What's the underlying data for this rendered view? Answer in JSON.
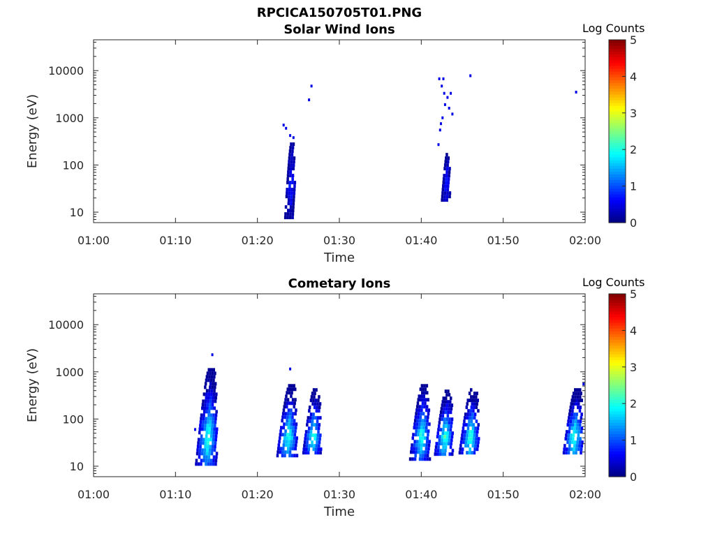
{
  "figure_title": "RPCICA150705T01.PNG",
  "chart_data": [
    {
      "type": "heatmap",
      "title": "Solar Wind Ions",
      "xlabel": "Time",
      "ylabel": "Energy (eV)",
      "xticks": [
        "01:00",
        "01:10",
        "01:20",
        "01:30",
        "01:40",
        "01:50",
        "02:00"
      ],
      "xlim_minutes": [
        0,
        60
      ],
      "yscale": "log",
      "ylim": [
        6,
        45000
      ],
      "yticks": [
        10,
        100,
        1000,
        10000
      ],
      "ytick_labels": [
        "10",
        "100",
        "1000",
        "10000"
      ],
      "colorbar": {
        "label": "Log Counts",
        "range": [
          0,
          5
        ],
        "ticks": [
          "0",
          "1",
          "2",
          "3",
          "4",
          "5"
        ],
        "colormap": "jet"
      },
      "blobs": [
        {
          "t_minute": 24.0,
          "t_width": 1.2,
          "e_min": 8,
          "e_max": 300,
          "peak_log_counts": 0.9
        },
        {
          "t_minute": 43.0,
          "t_width": 1.0,
          "e_min": 18,
          "e_max": 180,
          "peak_log_counts": 0.9
        }
      ],
      "scatter_points": [
        {
          "t_minute": 23.2,
          "energy": 700,
          "log_counts": 0.5
        },
        {
          "t_minute": 23.5,
          "energy": 600,
          "log_counts": 0.5
        },
        {
          "t_minute": 24.0,
          "energy": 420,
          "log_counts": 0.5
        },
        {
          "t_minute": 24.4,
          "energy": 380,
          "log_counts": 0.5
        },
        {
          "t_minute": 26.3,
          "energy": 2400,
          "log_counts": 0.5
        },
        {
          "t_minute": 26.6,
          "energy": 4700,
          "log_counts": 0.5
        },
        {
          "t_minute": 42.2,
          "energy": 6700,
          "log_counts": 0.5
        },
        {
          "t_minute": 42.7,
          "energy": 6700,
          "log_counts": 0.5
        },
        {
          "t_minute": 42.5,
          "energy": 4700,
          "log_counts": 0.5
        },
        {
          "t_minute": 42.8,
          "energy": 3300,
          "log_counts": 0.5
        },
        {
          "t_minute": 43.2,
          "energy": 2700,
          "log_counts": 0.5
        },
        {
          "t_minute": 43.6,
          "energy": 3300,
          "log_counts": 0.5
        },
        {
          "t_minute": 42.9,
          "energy": 1900,
          "log_counts": 0.5
        },
        {
          "t_minute": 43.4,
          "energy": 1600,
          "log_counts": 0.5
        },
        {
          "t_minute": 43.8,
          "energy": 1200,
          "log_counts": 0.5
        },
        {
          "t_minute": 42.6,
          "energy": 1000,
          "log_counts": 0.5
        },
        {
          "t_minute": 42.4,
          "energy": 750,
          "log_counts": 0.5
        },
        {
          "t_minute": 42.3,
          "energy": 550,
          "log_counts": 0.5
        },
        {
          "t_minute": 42.1,
          "energy": 270,
          "log_counts": 0.5
        },
        {
          "t_minute": 46.0,
          "energy": 7800,
          "log_counts": 0.5
        },
        {
          "t_minute": 58.9,
          "energy": 3500,
          "log_counts": 0.5
        }
      ]
    },
    {
      "type": "heatmap",
      "title": "Cometary Ions",
      "xlabel": "Time",
      "ylabel": "Energy (eV)",
      "xticks": [
        "01:00",
        "01:10",
        "01:20",
        "01:30",
        "01:40",
        "01:50",
        "02:00"
      ],
      "xlim_minutes": [
        0,
        60
      ],
      "yscale": "log",
      "ylim": [
        6,
        45000
      ],
      "yticks": [
        10,
        100,
        1000,
        10000
      ],
      "ytick_labels": [
        "10",
        "100",
        "1000",
        "10000"
      ],
      "colorbar": {
        "label": "Log Counts",
        "range": [
          0,
          5
        ],
        "ticks": [
          "0",
          "1",
          "2",
          "3",
          "4",
          "5"
        ],
        "colormap": "jet"
      },
      "blobs": [
        {
          "t_minute": 14.0,
          "t_width": 2.6,
          "e_min": 12,
          "e_max": 1200,
          "peak_log_counts": 2.2
        },
        {
          "t_minute": 23.8,
          "t_width": 2.4,
          "e_min": 18,
          "e_max": 550,
          "peak_log_counts": 2.2
        },
        {
          "t_minute": 26.8,
          "t_width": 2.2,
          "e_min": 18,
          "e_max": 450,
          "peak_log_counts": 2.2
        },
        {
          "t_minute": 40.0,
          "t_width": 2.4,
          "e_min": 15,
          "e_max": 550,
          "peak_log_counts": 2.2
        },
        {
          "t_minute": 42.9,
          "t_width": 2.2,
          "e_min": 18,
          "e_max": 420,
          "peak_log_counts": 2.3
        },
        {
          "t_minute": 46.0,
          "t_width": 2.4,
          "e_min": 18,
          "e_max": 450,
          "peak_log_counts": 2.3
        },
        {
          "t_minute": 58.7,
          "t_width": 2.4,
          "e_min": 18,
          "e_max": 450,
          "peak_log_counts": 2.3
        }
      ],
      "scatter_points": [
        {
          "t_minute": 14.5,
          "energy": 2300,
          "log_counts": 0.5
        },
        {
          "t_minute": 12.4,
          "energy": 60,
          "log_counts": 0.5
        },
        {
          "t_minute": 24.0,
          "energy": 1150,
          "log_counts": 0.5
        },
        {
          "t_minute": 22.6,
          "energy": 28,
          "log_counts": 0.5
        },
        {
          "t_minute": 59.8,
          "energy": 550,
          "log_counts": 0.5
        }
      ]
    }
  ]
}
